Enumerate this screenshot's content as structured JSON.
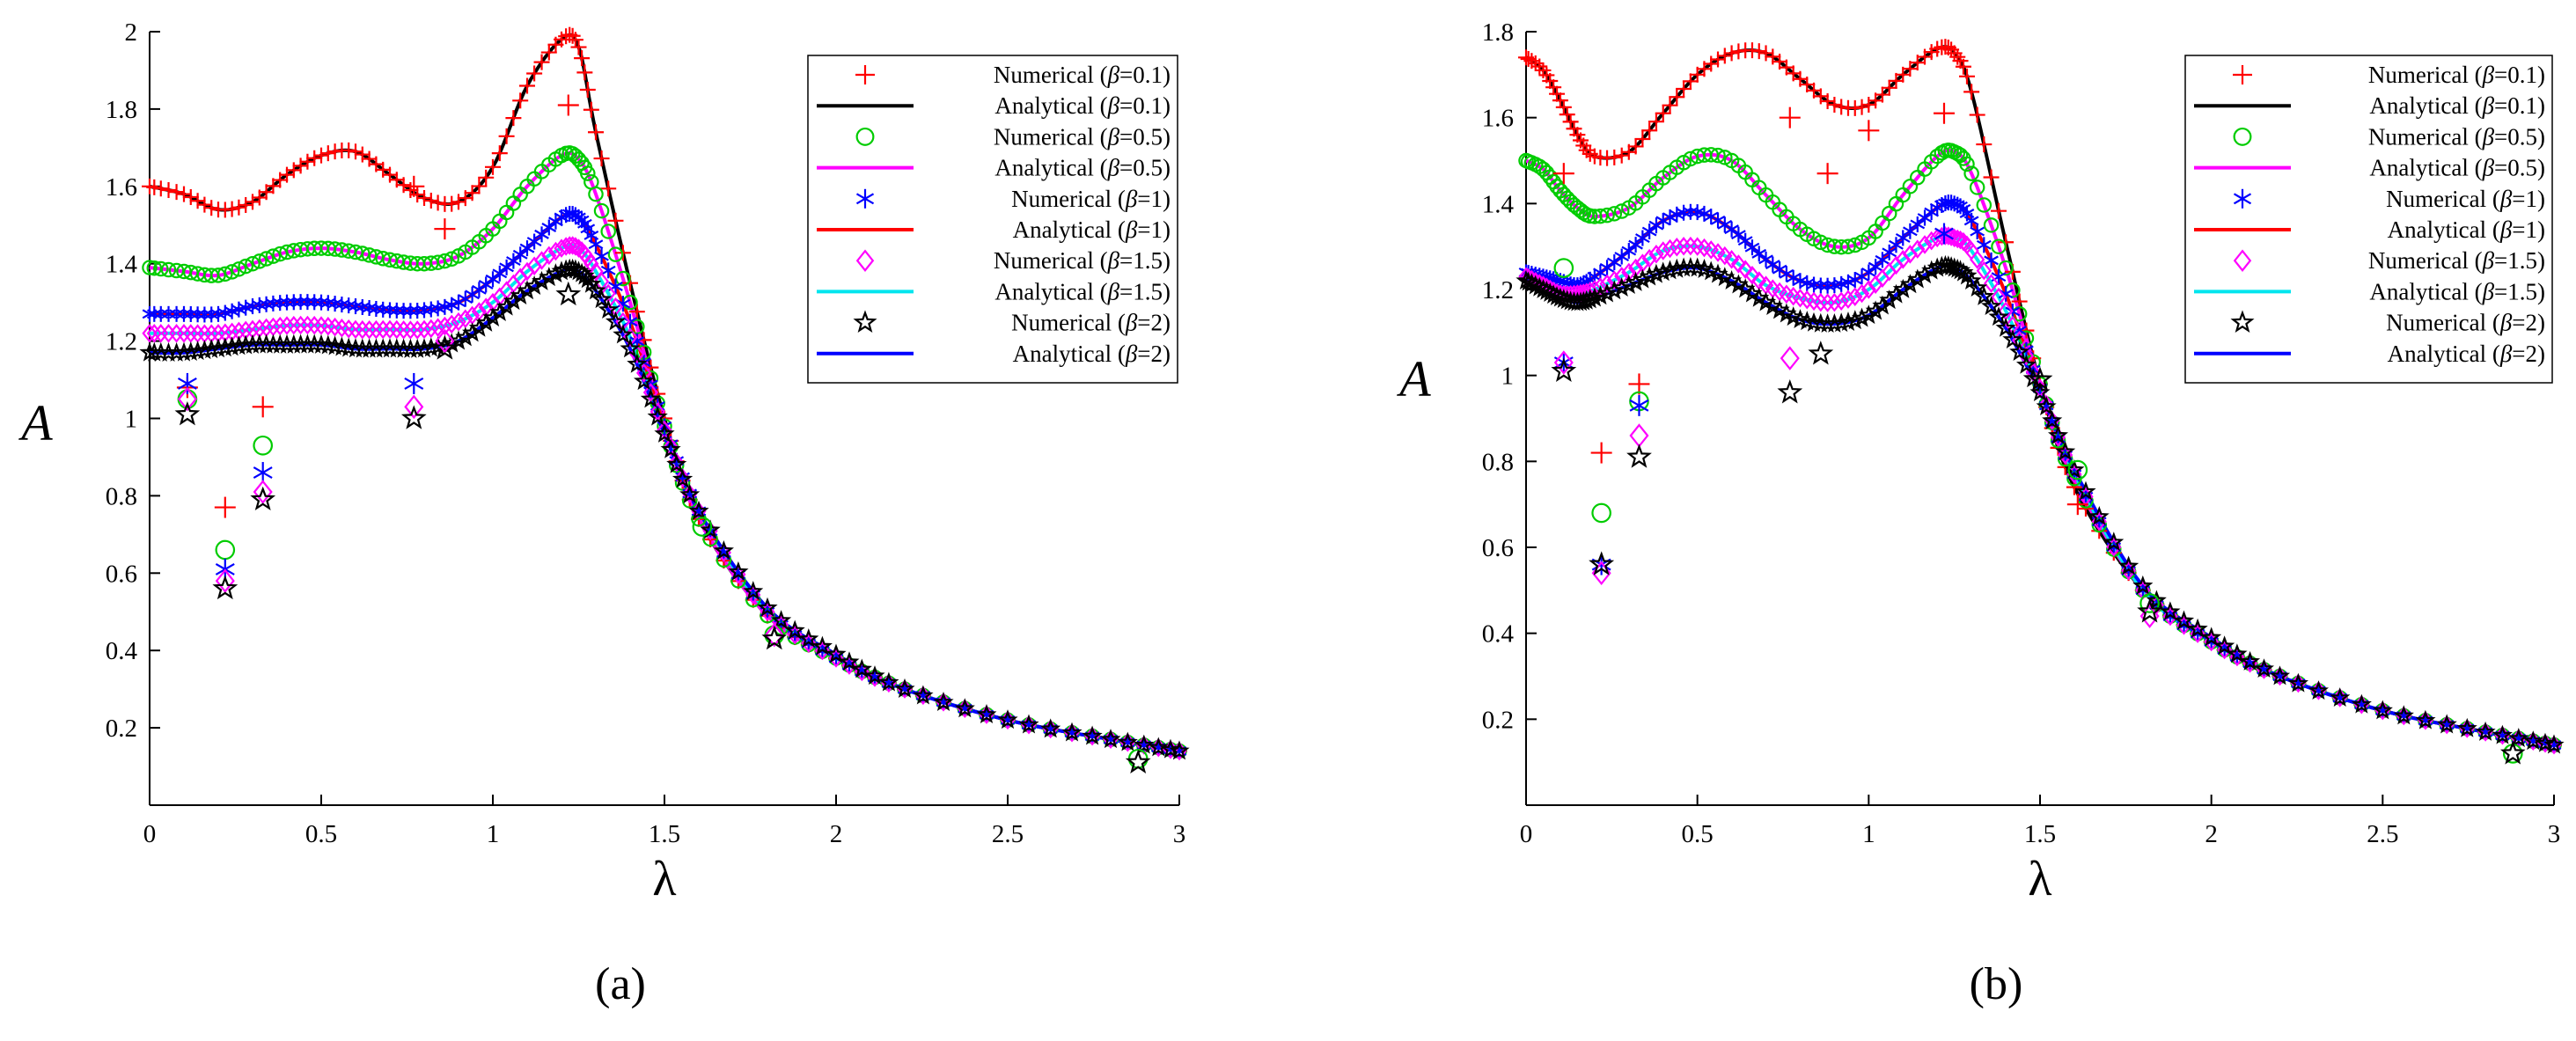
{
  "chart_data": [
    {
      "type": "line",
      "panel": "a",
      "caption": "(a)",
      "xlabel": "λ",
      "ylabel": "A",
      "xlim": [
        0,
        3
      ],
      "ylim": [
        0,
        2
      ],
      "xticks": [
        0,
        0.5,
        1,
        1.5,
        2,
        2.5,
        3
      ],
      "xtick_labels": [
        "0",
        "0.5",
        "1",
        "1.5",
        "2",
        "2.5",
        "3"
      ],
      "yticks": [
        0.2,
        0.4,
        0.6,
        0.8,
        1,
        1.2,
        1.4,
        1.6,
        1.8,
        2
      ],
      "ytick_labels": [
        "0.2",
        "0.4",
        "0.6",
        "0.8",
        "1",
        "1.2",
        "1.4",
        "1.6",
        "1.8",
        "2"
      ],
      "legend_position": "top-right",
      "series": [
        {
          "name": "Numerical (β=0.1)",
          "legend_prefix": "Numerical (",
          "legend_suffix": "=0.1)",
          "beta_symbol": "β",
          "kind": "numerical",
          "marker": "plus",
          "color": "#ff0000",
          "x": [
            0.11,
            0.22,
            0.33,
            0.77,
            0.86,
            1.22
          ],
          "y": [
            1.08,
            0.77,
            1.03,
            1.6,
            1.49,
            1.81
          ]
        },
        {
          "name": "Analytical (β=0.1)",
          "legend_prefix": "Analytical (",
          "legend_suffix": "=0.1)",
          "beta_symbol": "β",
          "kind": "analytical",
          "color": "#000000",
          "x": [
            0,
            0.1,
            0.2,
            0.3,
            0.4,
            0.5,
            0.6,
            0.7,
            0.8,
            0.9,
            1.0,
            1.1,
            1.2,
            1.25,
            1.3,
            1.4,
            1.5,
            1.6,
            1.8,
            2.0,
            2.2,
            2.5,
            2.8,
            3.0
          ],
          "y": [
            1.6,
            1.58,
            1.54,
            1.56,
            1.63,
            1.68,
            1.69,
            1.63,
            1.57,
            1.56,
            1.65,
            1.86,
            1.98,
            1.96,
            1.74,
            1.35,
            1.0,
            0.74,
            0.49,
            0.38,
            0.3,
            0.22,
            0.17,
            0.14
          ]
        },
        {
          "name": "Numerical (β=0.5)",
          "legend_prefix": "Numerical (",
          "legend_suffix": "=0.5)",
          "beta_symbol": "β",
          "kind": "numerical",
          "marker": "circle",
          "color": "#00cc00",
          "x": [
            0.11,
            0.22,
            0.33,
            1.61,
            1.82,
            2.88
          ],
          "y": [
            1.05,
            0.66,
            0.93,
            0.72,
            0.44,
            0.12
          ]
        },
        {
          "name": "Analytical (β=0.5)",
          "legend_prefix": "Analytical (",
          "legend_suffix": "=0.5)",
          "beta_symbol": "β",
          "kind": "analytical",
          "color": "#ff00ff",
          "x": [
            0,
            0.1,
            0.2,
            0.3,
            0.4,
            0.5,
            0.6,
            0.7,
            0.8,
            0.9,
            1.0,
            1.1,
            1.2,
            1.25,
            1.3,
            1.4,
            1.5,
            1.6,
            1.8,
            2.0,
            2.2,
            2.5,
            2.8,
            3.0
          ],
          "y": [
            1.39,
            1.38,
            1.37,
            1.4,
            1.43,
            1.44,
            1.43,
            1.41,
            1.4,
            1.42,
            1.49,
            1.6,
            1.68,
            1.67,
            1.58,
            1.3,
            0.98,
            0.74,
            0.49,
            0.38,
            0.3,
            0.22,
            0.17,
            0.14
          ]
        },
        {
          "name": "Numerical (β=1)",
          "legend_prefix": "Numerical (",
          "legend_suffix": "=1)",
          "beta_symbol": "β",
          "kind": "numerical",
          "marker": "asterisk",
          "color": "#0000ff",
          "x": [
            0.11,
            0.22,
            0.33,
            0.77
          ],
          "y": [
            1.09,
            0.61,
            0.86,
            1.09
          ]
        },
        {
          "name": "Analytical (β=1)",
          "legend_prefix": "Analytical (",
          "legend_suffix": "=1)",
          "beta_symbol": "β",
          "kind": "analytical",
          "color": "#ff0000",
          "x": [
            0,
            0.1,
            0.2,
            0.3,
            0.4,
            0.5,
            0.6,
            0.7,
            0.8,
            0.9,
            1.0,
            1.1,
            1.2,
            1.25,
            1.3,
            1.4,
            1.5,
            1.6,
            1.8,
            2.0,
            2.2,
            2.5,
            2.8,
            3.0
          ],
          "y": [
            1.27,
            1.27,
            1.27,
            1.29,
            1.3,
            1.3,
            1.29,
            1.28,
            1.28,
            1.3,
            1.36,
            1.44,
            1.52,
            1.52,
            1.45,
            1.25,
            0.98,
            0.76,
            0.5,
            0.38,
            0.3,
            0.22,
            0.17,
            0.14
          ]
        },
        {
          "name": "Numerical (β=1.5)",
          "legend_prefix": "Numerical (",
          "legend_suffix": "=1.5)",
          "beta_symbol": "β",
          "kind": "numerical",
          "marker": "diamond",
          "color": "#ff00ff",
          "x": [
            0.11,
            0.22,
            0.33,
            0.77,
            0.86,
            1.82
          ],
          "y": [
            1.05,
            0.58,
            0.81,
            1.03,
            1.2,
            0.44
          ]
        },
        {
          "name": "Analytical (β=1.5)",
          "legend_prefix": "Analytical (",
          "legend_suffix": "=1.5)",
          "beta_symbol": "β",
          "kind": "analytical",
          "color": "#00e5ee",
          "x": [
            0,
            0.1,
            0.2,
            0.3,
            0.4,
            0.5,
            0.6,
            0.7,
            0.8,
            0.9,
            1.0,
            1.1,
            1.2,
            1.25,
            1.3,
            1.4,
            1.5,
            1.6,
            1.8,
            2.0,
            2.2,
            2.5,
            2.8,
            3.0
          ],
          "y": [
            1.22,
            1.22,
            1.22,
            1.23,
            1.24,
            1.24,
            1.23,
            1.23,
            1.23,
            1.25,
            1.3,
            1.38,
            1.44,
            1.44,
            1.38,
            1.21,
            0.97,
            0.76,
            0.5,
            0.38,
            0.3,
            0.22,
            0.17,
            0.14
          ]
        },
        {
          "name": "Numerical (β=2)",
          "legend_prefix": "Numerical (",
          "legend_suffix": "=2)",
          "beta_symbol": "β",
          "kind": "numerical",
          "marker": "star",
          "color": "#000000",
          "x": [
            0.11,
            0.22,
            0.33,
            0.77,
            0.86,
            1.22,
            1.82,
            2.88
          ],
          "y": [
            1.01,
            0.56,
            0.79,
            1.0,
            1.18,
            1.32,
            0.43,
            0.11
          ]
        },
        {
          "name": "Analytical (β=2)",
          "legend_prefix": "Analytical (",
          "legend_suffix": "=2)",
          "beta_symbol": "β",
          "kind": "analytical",
          "color": "#0000ff",
          "x": [
            0,
            0.1,
            0.2,
            0.3,
            0.4,
            0.5,
            0.6,
            0.7,
            0.8,
            0.9,
            1.0,
            1.1,
            1.2,
            1.25,
            1.3,
            1.4,
            1.5,
            1.6,
            1.8,
            2.0,
            2.2,
            2.5,
            2.8,
            3.0
          ],
          "y": [
            1.17,
            1.17,
            1.18,
            1.19,
            1.19,
            1.19,
            1.18,
            1.18,
            1.18,
            1.2,
            1.26,
            1.33,
            1.38,
            1.38,
            1.33,
            1.18,
            0.96,
            0.76,
            0.51,
            0.39,
            0.3,
            0.22,
            0.17,
            0.14
          ]
        }
      ]
    },
    {
      "type": "line",
      "panel": "b",
      "caption": "(b)",
      "xlabel": "λ",
      "ylabel": "A",
      "xlim": [
        0,
        3
      ],
      "ylim": [
        0,
        1.8
      ],
      "xticks": [
        0,
        0.5,
        1,
        1.5,
        2,
        2.5,
        3
      ],
      "xtick_labels": [
        "0",
        "0.5",
        "1",
        "1.5",
        "2",
        "2.5",
        "3"
      ],
      "yticks": [
        0.2,
        0.4,
        0.6,
        0.8,
        1,
        1.2,
        1.4,
        1.6,
        1.8
      ],
      "ytick_labels": [
        "0.2",
        "0.4",
        "0.6",
        "0.8",
        "1",
        "1.2",
        "1.4",
        "1.6",
        "1.8"
      ],
      "legend_position": "top-right",
      "series": [
        {
          "name": "Numerical (β=0.1)",
          "legend_prefix": "Numerical (",
          "legend_suffix": "=0.1)",
          "beta_symbol": "β",
          "kind": "numerical",
          "marker": "plus",
          "color": "#ff0000",
          "x": [
            0.11,
            0.22,
            0.33,
            0.77,
            0.88,
            1.0,
            1.22,
            1.61
          ],
          "y": [
            1.47,
            0.82,
            0.98,
            1.6,
            1.47,
            1.57,
            1.61,
            0.7
          ]
        },
        {
          "name": "Analytical (β=0.1)",
          "legend_prefix": "Analytical (",
          "legend_suffix": "=0.1)",
          "beta_symbol": "β",
          "kind": "analytical",
          "color": "#000000",
          "x": [
            0,
            0.05,
            0.1,
            0.15,
            0.2,
            0.3,
            0.4,
            0.5,
            0.6,
            0.7,
            0.8,
            0.9,
            1.0,
            1.1,
            1.2,
            1.25,
            1.3,
            1.4,
            1.5,
            1.6,
            1.8,
            2.0,
            2.2,
            2.5,
            2.8,
            3.0
          ],
          "y": [
            1.74,
            1.71,
            1.64,
            1.56,
            1.51,
            1.52,
            1.61,
            1.7,
            1.75,
            1.75,
            1.69,
            1.63,
            1.63,
            1.7,
            1.76,
            1.75,
            1.66,
            1.31,
            0.98,
            0.74,
            0.5,
            0.38,
            0.3,
            0.22,
            0.17,
            0.14
          ]
        },
        {
          "name": "Numerical (β=0.5)",
          "legend_prefix": "Numerical (",
          "legend_suffix": "=0.5)",
          "beta_symbol": "β",
          "kind": "numerical",
          "marker": "circle",
          "color": "#00cc00",
          "x": [
            0.11,
            0.22,
            0.33,
            1.61,
            1.82,
            2.88
          ],
          "y": [
            1.25,
            0.68,
            0.94,
            0.78,
            0.47,
            0.12
          ]
        },
        {
          "name": "Analytical (β=0.5)",
          "legend_prefix": "Analytical (",
          "legend_suffix": "=0.5)",
          "beta_symbol": "β",
          "kind": "analytical",
          "color": "#ff00ff",
          "x": [
            0,
            0.05,
            0.1,
            0.15,
            0.2,
            0.3,
            0.4,
            0.5,
            0.6,
            0.7,
            0.8,
            0.9,
            1.0,
            1.1,
            1.2,
            1.25,
            1.3,
            1.4,
            1.5,
            1.6,
            1.8,
            2.0,
            2.2,
            2.5,
            2.8,
            3.0
          ],
          "y": [
            1.5,
            1.48,
            1.43,
            1.39,
            1.37,
            1.39,
            1.46,
            1.51,
            1.5,
            1.42,
            1.34,
            1.3,
            1.32,
            1.42,
            1.51,
            1.52,
            1.47,
            1.25,
            0.98,
            0.76,
            0.5,
            0.38,
            0.3,
            0.22,
            0.17,
            0.14
          ]
        },
        {
          "name": "Numerical (β=1)",
          "legend_prefix": "Numerical (",
          "legend_suffix": "=1)",
          "beta_symbol": "β",
          "kind": "numerical",
          "marker": "asterisk",
          "color": "#0000ff",
          "x": [
            0.11,
            0.22,
            0.33,
            1.22
          ],
          "y": [
            1.03,
            0.56,
            0.93,
            1.33
          ]
        },
        {
          "name": "Analytical (β=1)",
          "legend_prefix": "Analytical (",
          "legend_suffix": "=1)",
          "beta_symbol": "β",
          "kind": "analytical",
          "color": "#ff0000",
          "x": [
            0,
            0.05,
            0.1,
            0.15,
            0.2,
            0.3,
            0.4,
            0.5,
            0.6,
            0.7,
            0.8,
            0.9,
            1.0,
            1.1,
            1.2,
            1.25,
            1.3,
            1.4,
            1.5,
            1.6,
            1.8,
            2.0,
            2.2,
            2.5,
            2.8,
            3.0
          ],
          "y": [
            1.24,
            1.23,
            1.22,
            1.21,
            1.23,
            1.29,
            1.36,
            1.38,
            1.34,
            1.27,
            1.22,
            1.21,
            1.24,
            1.32,
            1.39,
            1.4,
            1.36,
            1.19,
            0.97,
            0.77,
            0.5,
            0.38,
            0.3,
            0.22,
            0.17,
            0.14
          ]
        },
        {
          "name": "Numerical (β=1.5)",
          "legend_prefix": "Numerical (",
          "legend_suffix": "=1.5)",
          "beta_symbol": "β",
          "kind": "numerical",
          "marker": "diamond",
          "color": "#ff00ff",
          "x": [
            0.11,
            0.22,
            0.33,
            0.77,
            1.82
          ],
          "y": [
            1.03,
            0.54,
            0.86,
            1.04,
            0.44
          ]
        },
        {
          "name": "Analytical (β=1.5)",
          "legend_prefix": "Analytical (",
          "legend_suffix": "=1.5)",
          "beta_symbol": "β",
          "kind": "analytical",
          "color": "#00e5ee",
          "x": [
            0,
            0.05,
            0.1,
            0.15,
            0.2,
            0.3,
            0.4,
            0.5,
            0.6,
            0.7,
            0.8,
            0.9,
            1.0,
            1.1,
            1.2,
            1.25,
            1.3,
            1.4,
            1.5,
            1.6,
            1.8,
            2.0,
            2.2,
            2.5,
            2.8,
            3.0
          ],
          "y": [
            1.23,
            1.21,
            1.19,
            1.19,
            1.2,
            1.24,
            1.29,
            1.3,
            1.27,
            1.21,
            1.18,
            1.17,
            1.2,
            1.27,
            1.32,
            1.32,
            1.29,
            1.15,
            0.97,
            0.77,
            0.5,
            0.38,
            0.3,
            0.22,
            0.17,
            0.14
          ]
        },
        {
          "name": "Numerical (β=2)",
          "legend_prefix": "Numerical (",
          "legend_suffix": "=2)",
          "beta_symbol": "β",
          "kind": "numerical",
          "marker": "star",
          "color": "#000000",
          "x": [
            0.11,
            0.22,
            0.33,
            0.77,
            0.86,
            1.5,
            1.82,
            2.88
          ],
          "y": [
            1.01,
            0.56,
            0.81,
            0.96,
            1.05,
            0.99,
            0.45,
            0.12
          ]
        },
        {
          "name": "Analytical (β=2)",
          "legend_prefix": "Analytical (",
          "legend_suffix": "=2)",
          "beta_symbol": "β",
          "kind": "analytical",
          "color": "#0000ff",
          "x": [
            0,
            0.05,
            0.1,
            0.15,
            0.2,
            0.3,
            0.4,
            0.5,
            0.6,
            0.7,
            0.8,
            0.9,
            1.0,
            1.1,
            1.2,
            1.25,
            1.3,
            1.4,
            1.5,
            1.6,
            1.8,
            2.0,
            2.2,
            2.5,
            2.8,
            3.0
          ],
          "y": [
            1.22,
            1.2,
            1.18,
            1.17,
            1.18,
            1.21,
            1.24,
            1.25,
            1.22,
            1.17,
            1.13,
            1.12,
            1.14,
            1.2,
            1.25,
            1.25,
            1.22,
            1.11,
            0.96,
            0.78,
            0.51,
            0.39,
            0.3,
            0.22,
            0.17,
            0.14
          ]
        }
      ]
    }
  ]
}
